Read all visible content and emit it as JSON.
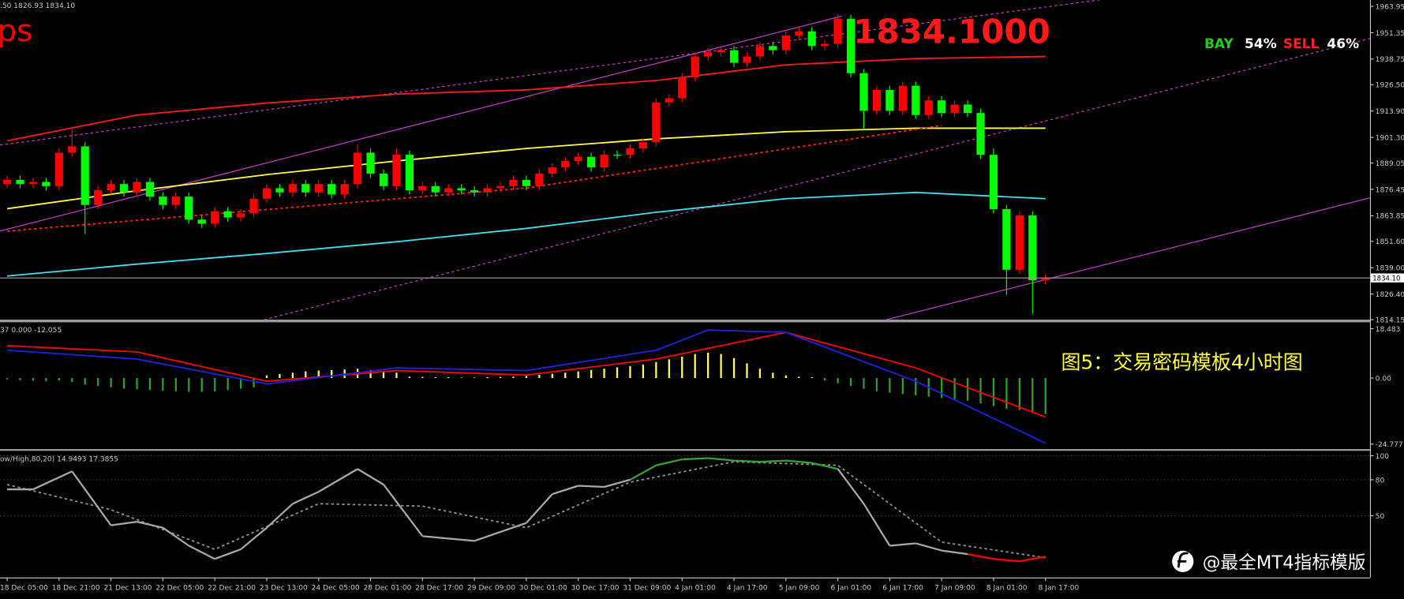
{
  "watermark": "@最全MT4指标模版",
  "chart_data": [
    {
      "type": "candlestick",
      "header": ".50 1826.93 1834.10",
      "corner_text": "ps",
      "price_banner": {
        "value": 1834.1,
        "label": "1834.1000"
      },
      "buy_label": "BAY",
      "buy_percent": {
        "value": 54,
        "label": "54%"
      },
      "sell_label": "SELL",
      "sell_percent": {
        "value": 46,
        "label": "46%"
      },
      "current_price": {
        "value": 1834.1,
        "label": "1834.10"
      },
      "up_color": "#ff0000",
      "down_color": "#00ff00",
      "xlim": [
        -0.55,
        105
      ],
      "ylim": [
        1814.15,
        1967
      ],
      "yticks": [
        1963.95,
        1951.35,
        1938.75,
        {
          "value": 1926.5,
          "label": "1926.50"
        },
        {
          "value": 1913.9,
          "label": "1913.90"
        },
        {
          "value": 1901.3,
          "label": "1901.30"
        },
        1889.05,
        1876.45,
        1863.85,
        {
          "value": 1851.6,
          "label": "1851.60"
        },
        {
          "value": 1839,
          "label": "1839.00"
        },
        {
          "value": 1826.4,
          "label": "1826.40"
        },
        1814.15
      ],
      "open": [
        1879,
        1881,
        1879,
        1880,
        1878,
        1894,
        1897,
        1869,
        1876,
        1879,
        1875,
        1880,
        1873,
        1869,
        1873,
        1862,
        1860,
        1866,
        1863,
        1865,
        1872,
        1877,
        1875,
        1879,
        1875,
        1879,
        1874,
        1879,
        1894,
        1884,
        1878,
        1893,
        1876,
        1878,
        1875,
        1877,
        1876,
        1875,
        1877,
        1878,
        1881,
        1878,
        1884,
        1887,
        1890,
        1892,
        1887,
        1893,
        1893,
        1896,
        1899,
        1918,
        1920,
        1930,
        1940,
        1942,
        1943,
        1937,
        1940,
        1945,
        1943,
        1950,
        1952,
        1945,
        1946,
        1958,
        1932,
        1914,
        1924,
        1914,
        1926,
        1912,
        1919,
        1913,
        1917,
        1913,
        1893,
        1867,
        1838,
        1864,
        1833
      ],
      "high": [
        1883,
        1883,
        1882,
        1882,
        1896,
        1905,
        1899,
        1878,
        1881,
        1881,
        1882,
        1882,
        1875,
        1875,
        1875,
        1864,
        1868,
        1868,
        1867,
        1874,
        1879,
        1879,
        1881,
        1881,
        1881,
        1881,
        1881,
        1898,
        1896,
        1886,
        1896,
        1895,
        1880,
        1880,
        1879,
        1879,
        1878,
        1879,
        1880,
        1883,
        1883,
        1886,
        1889,
        1892,
        1894,
        1894,
        1895,
        1895,
        1898,
        1901,
        1920,
        1922,
        1932,
        1942,
        1944,
        1945,
        1945,
        1942,
        1947,
        1947,
        1952,
        1954,
        1954,
        1948,
        1960,
        1960,
        1934,
        1926,
        1926,
        1928,
        1928,
        1921,
        1921,
        1919,
        1919,
        1915,
        1896,
        1869,
        1866,
        1866,
        1836
      ],
      "low": [
        1877,
        1877,
        1877,
        1876,
        1876,
        1892,
        1855,
        1867,
        1874,
        1873,
        1873,
        1871,
        1867,
        1867,
        1860,
        1858,
        1858,
        1861,
        1861,
        1863,
        1870,
        1873,
        1873,
        1873,
        1873,
        1872,
        1872,
        1877,
        1882,
        1876,
        1876,
        1874,
        1874,
        1873,
        1873,
        1874,
        1873,
        1873,
        1875,
        1876,
        1876,
        1876,
        1882,
        1885,
        1888,
        1885,
        1885,
        1891,
        1891,
        1894,
        1897,
        1916,
        1918,
        1928,
        1938,
        1940,
        1935,
        1935,
        1938,
        1941,
        1941,
        1948,
        1943,
        1943,
        1944,
        1930,
        1905,
        1912,
        1912,
        1912,
        1910,
        1910,
        1911,
        1911,
        1911,
        1891,
        1865,
        1826,
        1836,
        1817,
        1831
      ],
      "close": [
        1881,
        1879,
        1880,
        1878,
        1894,
        1897,
        1869,
        1876,
        1879,
        1875,
        1880,
        1873,
        1869,
        1873,
        1862,
        1860,
        1866,
        1863,
        1865,
        1872,
        1877,
        1875,
        1879,
        1875,
        1879,
        1874,
        1879,
        1894,
        1884,
        1878,
        1893,
        1876,
        1878,
        1875,
        1877,
        1876,
        1875,
        1877,
        1878,
        1881,
        1878,
        1884,
        1887,
        1890,
        1892,
        1887,
        1893,
        1893,
        1896,
        1899,
        1918,
        1920,
        1930,
        1940,
        1942,
        1943,
        1937,
        1940,
        1945,
        1943,
        1950,
        1952,
        1945,
        1946,
        1958,
        1932,
        1914,
        1924,
        1914,
        1926,
        1912,
        1919,
        1913,
        1917,
        1913,
        1893,
        1867,
        1838,
        1864,
        1833,
        1834.1
      ],
      "lines": [
        {
          "color": "#ff1a1a",
          "dashed": false,
          "x": [
            0,
            10,
            20,
            30,
            40,
            50,
            60,
            70,
            80
          ],
          "values": [
            1899.7,
            1912,
            1917.7,
            1922,
            1924,
            1928.5,
            1936,
            1939,
            1940
          ]
        },
        {
          "color": "#ffff40",
          "dashed": false,
          "x": [
            0,
            10,
            20,
            30,
            40,
            50,
            60,
            70,
            80
          ],
          "values": [
            1867.2,
            1875.8,
            1883.5,
            1890,
            1896,
            1900.6,
            1904,
            1905.7,
            1905.7
          ]
        },
        {
          "color": "#40e0f0",
          "dashed": false,
          "x": [
            0,
            10,
            20,
            30,
            40,
            50,
            60,
            70,
            80
          ],
          "values": [
            1835,
            1840.7,
            1845.8,
            1851.4,
            1857.8,
            1865.5,
            1872,
            1875,
            1872
          ]
        },
        {
          "color": "#ff2020",
          "dashed": true,
          "x": [
            0,
            40,
            72
          ],
          "values": [
            1856.5,
            1877.1,
            1907
          ]
        }
      ]
    },
    {
      "type": "macd",
      "header": "37 0.000 -12.055",
      "annotation": "图5：交易密码模板4小时图",
      "up_color": "#ffff60",
      "down_color": "#2ea02e",
      "xlim": [
        -0.55,
        105
      ],
      "ylim": [
        -26.1,
        20.2
      ],
      "yticks": [
        18.483,
        {
          "value": 0,
          "label": "0.00"
        },
        -24.777
      ],
      "values": [
        -0.5,
        -0.8,
        -1,
        -1.2,
        -1,
        -1.5,
        -2.5,
        -3,
        -3.5,
        -4,
        -4.2,
        -4.5,
        -4.8,
        -5,
        -5.2,
        -5.2,
        -5,
        -4.5,
        -4,
        -3.5,
        1,
        1.5,
        2,
        2.5,
        2.8,
        3,
        3.2,
        3.5,
        3,
        2.5,
        2,
        0.5,
        0.4,
        0.3,
        0.3,
        0.2,
        0.2,
        0.3,
        0.4,
        0.5,
        0.8,
        1.2,
        1.6,
        2,
        2.5,
        3,
        3.5,
        4,
        4.5,
        5,
        6,
        7,
        8,
        9,
        9.5,
        9,
        7.5,
        5.5,
        3.5,
        2,
        1,
        0.5,
        0.3,
        -1,
        -2,
        -3,
        -4,
        -5,
        -5.5,
        -6,
        -6.5,
        -7,
        -7.5,
        -8,
        -8.5,
        -9.5,
        -10.5,
        -11.5,
        -12,
        -12.5,
        -13.5
      ],
      "lines": [
        {
          "color": "#ff0000",
          "x": [
            0,
            10,
            20,
            30,
            40,
            50,
            60,
            70,
            80
          ],
          "values": [
            12.1,
            9.8,
            -1.2,
            2.8,
            1.1,
            7.1,
            17.1,
            3.8,
            -14.6
          ]
        },
        {
          "color": "#2020e0",
          "x": [
            0,
            10,
            20,
            30,
            40,
            50,
            54,
            60,
            70,
            80
          ],
          "values": [
            10.4,
            7.1,
            -2.2,
            3.8,
            2.8,
            10.4,
            18,
            17.1,
            -1.2,
            -24.4
          ]
        }
      ]
    },
    {
      "type": "stochastic",
      "header": "ow/High,80,20) 14.9493 17.3855",
      "overbought": 80,
      "oversold": 20,
      "color": "#a8a8a8",
      "overbought_color": "#3aa03a",
      "oversold_color": "#ff0000",
      "signal_color": "#909090",
      "grid": true,
      "xlim": [
        -0.55,
        105
      ],
      "ylim": [
        0,
        103
      ],
      "yticks": [
        100,
        80,
        50
      ],
      "x": [
        0,
        2,
        5,
        8,
        10,
        12,
        14,
        16,
        18,
        20,
        22,
        24,
        27,
        29,
        32,
        36,
        40,
        42,
        44,
        46,
        48,
        50,
        52,
        54,
        56,
        58,
        60,
        62,
        64,
        66,
        68,
        70,
        72,
        74,
        76,
        78,
        80
      ],
      "values": [
        72,
        72,
        87,
        42,
        45,
        40,
        25,
        14,
        22,
        40,
        60,
        70,
        89,
        76,
        33,
        29,
        44,
        68,
        75,
        74,
        80,
        92,
        97,
        98,
        96,
        95,
        96,
        94,
        89,
        60,
        25,
        27,
        21,
        18,
        14,
        12,
        16
      ],
      "signal_x": [
        0,
        8,
        16,
        24,
        32,
        40,
        48,
        56,
        64,
        72,
        80
      ],
      "signal": [
        76,
        55,
        22,
        60,
        58,
        40,
        78,
        95,
        92,
        28,
        15
      ],
      "xticks": [
        {
          "value": 0,
          "label": "18 Dec 05:00"
        },
        {
          "value": 4,
          "label": "18 Dec 21:00"
        },
        {
          "value": 8,
          "label": "21 Dec 13:00"
        },
        {
          "value": 12,
          "label": "22 Dec 05:00"
        },
        {
          "value": 16,
          "label": "22 Dec 21:00"
        },
        {
          "value": 20,
          "label": "23 Dec 13:00"
        },
        {
          "value": 24,
          "label": "24 Dec 05:00"
        },
        {
          "value": 28,
          "label": "28 Dec 01:00"
        },
        {
          "value": 32,
          "label": "28 Dec 17:00"
        },
        {
          "value": 36,
          "label": "29 Dec 09:00"
        },
        {
          "value": 40,
          "label": "30 Dec 01:00"
        },
        {
          "value": 44,
          "label": "30 Dec 17:00"
        },
        {
          "value": 48,
          "label": "31 Dec 09:00"
        },
        {
          "value": 52,
          "label": "4 Jan 01:00"
        },
        {
          "value": 56,
          "label": "4 Jan 17:00"
        },
        {
          "value": 60,
          "label": "5 Jan 09:00"
        },
        {
          "value": 64,
          "label": "6 Jan 01:00"
        },
        {
          "value": 68,
          "label": "6 Jan 17:00"
        },
        {
          "value": 72,
          "label": "7 Jan 09:00"
        },
        {
          "value": 76,
          "label": "8 Jan 01:00"
        },
        {
          "value": 80,
          "label": "8 Jan 17:00"
        }
      ]
    }
  ]
}
